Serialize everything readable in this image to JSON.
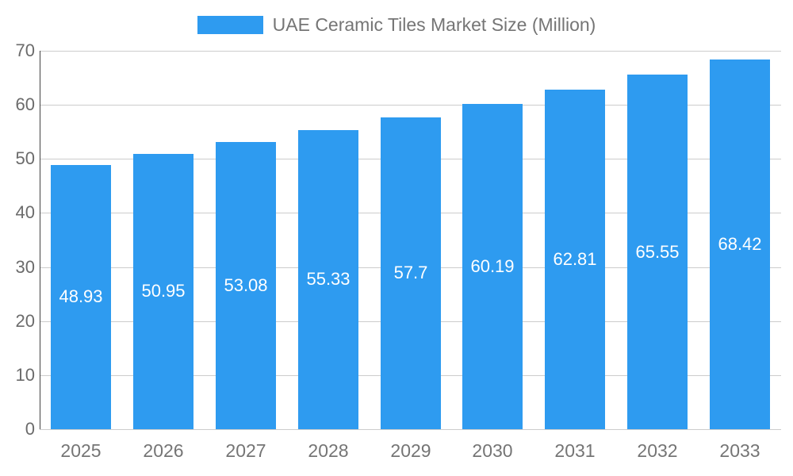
{
  "chart_data": {
    "type": "bar",
    "title": "UAE Ceramic Tiles Market Size (Million)",
    "categories": [
      "2025",
      "2026",
      "2027",
      "2028",
      "2029",
      "2030",
      "2031",
      "2032",
      "2033"
    ],
    "values": [
      48.93,
      50.95,
      53.08,
      55.33,
      57.7,
      60.19,
      62.81,
      65.55,
      68.42
    ],
    "value_labels": [
      "48.93",
      "50.95",
      "53.08",
      "55.33",
      "57.7",
      "60.19",
      "62.81",
      "65.55",
      "68.42"
    ],
    "xlabel": "",
    "ylabel": "",
    "ylim": [
      0,
      70
    ],
    "yticks": [
      0,
      10,
      20,
      30,
      40,
      50,
      60,
      70
    ],
    "ytick_labels": [
      "0",
      "10",
      "20",
      "30",
      "40",
      "50",
      "60",
      "70"
    ],
    "grid": "horizontal",
    "legend_position": "top-center",
    "colors": {
      "bar": "#2e9bf0",
      "bar_label_text": "#ffffff",
      "gridline": "#cccccc",
      "axis_line": "#424242",
      "tick_text": "#6b6b6b",
      "legend_text": "#757575",
      "background": "#ffffff"
    }
  }
}
